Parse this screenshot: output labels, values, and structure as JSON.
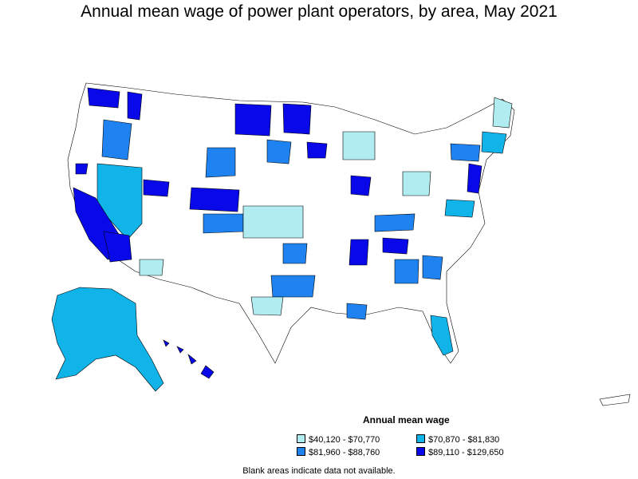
{
  "title": "Annual mean wage of power plant operators, by area, May 2021",
  "legend": {
    "title": "Annual mean wage",
    "items": [
      {
        "label": "$40,120 - $70,770",
        "color": "#b0ecf0"
      },
      {
        "label": "$70,870 - $81,830",
        "color": "#10b4e8"
      },
      {
        "label": "$81,960 - $88,760",
        "color": "#1e82f0"
      },
      {
        "label": "$89,110 - $129,650",
        "color": "#0808e8"
      }
    ]
  },
  "note": "Blank areas indicate data not available.",
  "colors": {
    "blank": "#ffffff",
    "border": "#000000"
  }
}
